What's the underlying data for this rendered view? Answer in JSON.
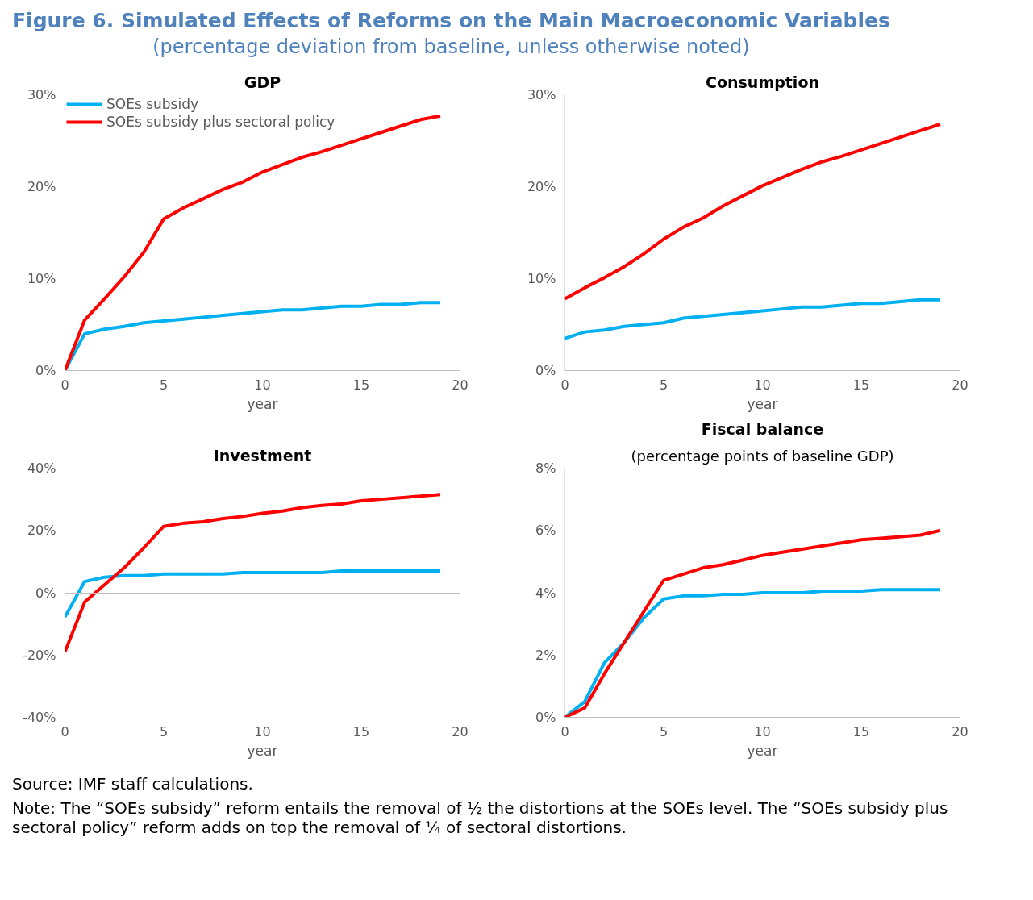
{
  "chart_data": [
    {
      "type": "other",
      "title": "Figure 6. Simulated Effects of Reforms on the Main Macroeconomic Variables",
      "subtitle": "(percentage deviation from baseline, unless otherwise noted)"
    },
    {
      "type": "line",
      "title": "GDP",
      "xlabel": "year",
      "x": [
        0,
        1,
        2,
        3,
        4,
        5,
        6,
        7,
        8,
        9,
        10,
        11,
        12,
        13,
        14,
        15,
        16,
        17,
        18,
        19
      ],
      "xlim": [
        0,
        20
      ],
      "xticks": [
        0,
        5,
        10,
        15,
        20
      ],
      "ylim": [
        0,
        30
      ],
      "yticks": [
        {
          "value": 0,
          "label": "0%"
        },
        {
          "value": 10,
          "label": "10%"
        },
        {
          "value": 20,
          "label": "20%"
        },
        {
          "value": 30,
          "label": "30%"
        }
      ],
      "grid": false,
      "legend": "top left",
      "series": [
        {
          "name": "SOEs subsidy",
          "color": "#00b0f0",
          "values": [
            0,
            4,
            4.5,
            4.8,
            5.2,
            5.4,
            5.6,
            5.8,
            6.0,
            6.2,
            6.4,
            6.6,
            6.6,
            6.8,
            7.0,
            7.0,
            7.2,
            7.2,
            7.4,
            7.4
          ]
        },
        {
          "name": "SOEs subsidy plus sectoral policy",
          "color": "#ff0000",
          "values": [
            0,
            5.5,
            7.8,
            10.2,
            12.9,
            16.5,
            17.7,
            18.7,
            19.7,
            20.5,
            21.6,
            22.4,
            23.2,
            23.8,
            24.5,
            25.2,
            25.9,
            26.6,
            27.3,
            27.7
          ]
        }
      ]
    },
    {
      "type": "line",
      "title": "Consumption",
      "xlabel": "year",
      "x": [
        0,
        1,
        2,
        3,
        4,
        5,
        6,
        7,
        8,
        9,
        10,
        11,
        12,
        13,
        14,
        15,
        16,
        17,
        18,
        19
      ],
      "xlim": [
        0,
        20
      ],
      "xticks": [
        0,
        5,
        10,
        15,
        20
      ],
      "ylim": [
        0,
        30
      ],
      "yticks": [
        {
          "value": 0,
          "label": "0%"
        },
        {
          "value": 10,
          "label": "10%"
        },
        {
          "value": 20,
          "label": "20%"
        },
        {
          "value": 30,
          "label": "30%"
        }
      ],
      "grid": false,
      "series": [
        {
          "color": "#00b0f0",
          "values": [
            3.5,
            4.2,
            4.4,
            4.8,
            5.0,
            5.2,
            5.7,
            5.9,
            6.1,
            6.3,
            6.5,
            6.7,
            6.9,
            6.9,
            7.1,
            7.3,
            7.3,
            7.5,
            7.7,
            7.7
          ]
        },
        {
          "color": "#ff0000",
          "values": [
            7.8,
            9.0,
            10.1,
            11.3,
            12.7,
            14.3,
            15.6,
            16.6,
            17.9,
            19.0,
            20.1,
            21.0,
            21.9,
            22.7,
            23.3,
            24.0,
            24.7,
            25.4,
            26.1,
            26.8
          ]
        }
      ]
    },
    {
      "type": "line",
      "title": "Investment",
      "xlabel": "year",
      "x": [
        0,
        1,
        2,
        3,
        4,
        5,
        6,
        7,
        8,
        9,
        10,
        11,
        12,
        13,
        14,
        15,
        16,
        17,
        18,
        19
      ],
      "xlim": [
        0,
        20
      ],
      "xticks": [
        0,
        5,
        10,
        15,
        20
      ],
      "ylim": [
        -40,
        40
      ],
      "yticks": [
        {
          "value": -40,
          "label": "-40%"
        },
        {
          "value": -20,
          "label": "-20%"
        },
        {
          "value": 0,
          "label": "0%"
        },
        {
          "value": 20,
          "label": "20%"
        },
        {
          "value": 40,
          "label": "40%"
        }
      ],
      "series": [
        {
          "color": "#00b0f0",
          "values": [
            -7.8,
            3.6,
            5,
            5.5,
            5.5,
            6,
            6,
            6,
            6,
            6.5,
            6.5,
            6.5,
            6.5,
            6.5,
            7,
            7,
            7,
            7,
            7,
            7
          ]
        },
        {
          "color": "#ff0000",
          "values": [
            -19,
            -3,
            2.5,
            8,
            14.5,
            21.3,
            22.3,
            22.8,
            23.8,
            24.5,
            25.5,
            26.2,
            27.3,
            28,
            28.5,
            29.5,
            30,
            30.5,
            31,
            31.5
          ]
        }
      ]
    },
    {
      "type": "line",
      "title": "Fiscal balance",
      "subtitle": "(percentage points of baseline GDP)",
      "xlabel": "year",
      "x": [
        0,
        1,
        2,
        3,
        4,
        5,
        6,
        7,
        8,
        9,
        10,
        11,
        12,
        13,
        14,
        15,
        16,
        17,
        18,
        19
      ],
      "xlim": [
        0,
        20
      ],
      "xticks": [
        0,
        5,
        10,
        15,
        20
      ],
      "ylim": [
        0,
        8
      ],
      "yticks": [
        {
          "value": 0,
          "label": "0%"
        },
        {
          "value": 2,
          "label": "2%"
        },
        {
          "value": 4,
          "label": "4%"
        },
        {
          "value": 6,
          "label": "6%"
        },
        {
          "value": 8,
          "label": "8%"
        }
      ],
      "grid": false,
      "series": [
        {
          "color": "#00b0f0",
          "values": [
            0,
            0.5,
            1.75,
            2.4,
            3.2,
            3.8,
            3.9,
            3.9,
            3.95,
            3.95,
            4.0,
            4.0,
            4.0,
            4.05,
            4.05,
            4.05,
            4.1,
            4.1,
            4.1,
            4.1
          ]
        },
        {
          "color": "#ff0000",
          "values": [
            0,
            0.3,
            1.4,
            2.4,
            3.4,
            4.4,
            4.6,
            4.8,
            4.9,
            5.05,
            5.2,
            5.3,
            5.4,
            5.5,
            5.6,
            5.7,
            5.75,
            5.8,
            5.85,
            6.0
          ]
        }
      ]
    },
    {
      "type": "other",
      "annotations": [
        "Source: IMF staff calculations.",
        "Note: The “SOEs subsidy” reform entails the removal of ½ the distortions at the SOEs level. The “SOEs subsidy plus sectoral policy” reform adds on top the removal of ¼ of sectoral distortions."
      ]
    }
  ]
}
